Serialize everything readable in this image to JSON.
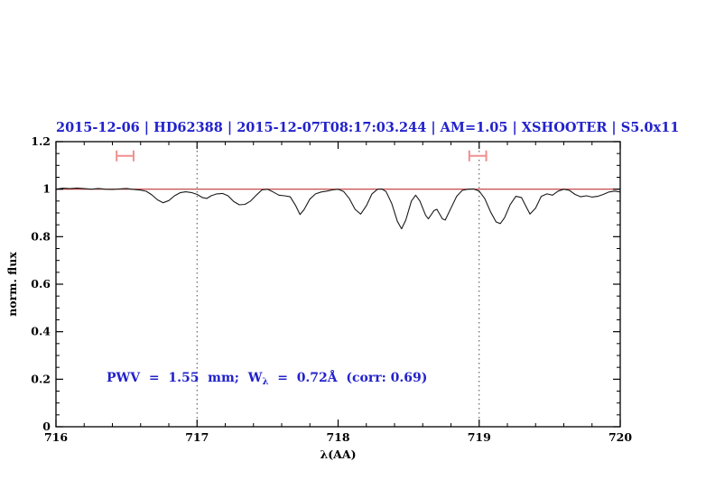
{
  "title": {
    "text": "2015-12-06 | HD62388 | 2015-12-07T08:17:03.244 | AM=1.05 | XSHOOTER | S5.0x11",
    "color": "#2222cc"
  },
  "annotation": {
    "pre": "PWV  =  1.55  mm;  W",
    "sub": "λ",
    "post": "  =  0.72Å  (corr: 0.69)",
    "color": "#2222cc"
  },
  "chart_data": {
    "type": "line",
    "title": "2015-12-06 | HD62388 | 2015-12-07T08:17:03.244 | AM=1.05 | XSHOOTER | S5.0x11",
    "xlabel": "λ(AA)",
    "ylabel": "norm. flux",
    "xlim": [
      716,
      720
    ],
    "ylim": [
      0,
      1.2
    ],
    "xticks": [
      716,
      717,
      718,
      719,
      720
    ],
    "yticks": [
      0,
      0.2,
      0.4,
      0.6,
      0.8,
      1,
      1.2
    ],
    "x_minor_step": 0.2,
    "y_minor_step": 0.05,
    "grid": false,
    "legend": null,
    "dotted_lines_x": [
      717,
      719
    ],
    "continuum_flux": 1.0,
    "band_markers": [
      {
        "x_start": 716.43,
        "x_end": 716.55,
        "y": 1.14
      },
      {
        "x_start": 718.93,
        "x_end": 719.05,
        "y": 1.14
      }
    ],
    "x": [
      716.0,
      716.05,
      716.1,
      716.15,
      716.2,
      716.25,
      716.3,
      716.35,
      716.4,
      716.45,
      716.5,
      716.55,
      716.6,
      716.64,
      716.68,
      716.72,
      716.76,
      716.8,
      716.84,
      716.88,
      716.92,
      716.96,
      717.0,
      717.04,
      717.07,
      717.1,
      717.14,
      717.18,
      717.22,
      717.26,
      717.3,
      717.34,
      717.38,
      717.42,
      717.46,
      717.5,
      717.54,
      717.58,
      717.62,
      717.66,
      717.7,
      717.73,
      717.76,
      717.8,
      717.84,
      717.88,
      717.92,
      717.96,
      718.0,
      718.04,
      718.08,
      718.12,
      718.16,
      718.2,
      718.24,
      718.28,
      718.31,
      718.34,
      718.38,
      718.42,
      718.45,
      718.48,
      718.52,
      718.55,
      718.58,
      718.62,
      718.64,
      718.68,
      718.7,
      718.74,
      718.76,
      718.8,
      718.84,
      718.88,
      718.92,
      718.96,
      719.0,
      719.04,
      719.08,
      719.12,
      719.15,
      719.18,
      719.22,
      719.26,
      719.3,
      719.33,
      719.36,
      719.4,
      719.44,
      719.48,
      719.52,
      719.56,
      719.6,
      719.64,
      719.68,
      719.72,
      719.76,
      719.8,
      719.84,
      719.88,
      719.92,
      719.96,
      720.0
    ],
    "y": [
      1.0,
      1.004,
      1.002,
      1.005,
      1.002,
      1.0,
      1.003,
      1.0,
      0.999,
      1.001,
      1.003,
      0.999,
      0.996,
      0.991,
      0.976,
      0.955,
      0.943,
      0.952,
      0.972,
      0.985,
      0.989,
      0.986,
      0.978,
      0.964,
      0.961,
      0.972,
      0.98,
      0.982,
      0.972,
      0.948,
      0.934,
      0.936,
      0.95,
      0.975,
      0.997,
      1.0,
      0.988,
      0.975,
      0.972,
      0.968,
      0.93,
      0.893,
      0.915,
      0.958,
      0.98,
      0.988,
      0.992,
      0.997,
      1.0,
      0.99,
      0.96,
      0.915,
      0.895,
      0.93,
      0.98,
      1.0,
      1.001,
      0.99,
      0.94,
      0.865,
      0.833,
      0.87,
      0.95,
      0.975,
      0.95,
      0.89,
      0.875,
      0.91,
      0.915,
      0.875,
      0.87,
      0.92,
      0.97,
      0.995,
      1.0,
      1.001,
      0.992,
      0.96,
      0.905,
      0.862,
      0.855,
      0.88,
      0.935,
      0.97,
      0.965,
      0.93,
      0.895,
      0.92,
      0.97,
      0.98,
      0.975,
      0.992,
      1.0,
      0.995,
      0.978,
      0.968,
      0.972,
      0.967,
      0.97,
      0.978,
      0.988,
      0.992,
      0.988
    ],
    "colors": {
      "spectrum": "#1a1a1a",
      "continuum": "#c03434",
      "band_marker": "#f08f8f",
      "dotted_line": "#444444",
      "axis": "#000000",
      "text_blue": "#2222cc"
    }
  }
}
